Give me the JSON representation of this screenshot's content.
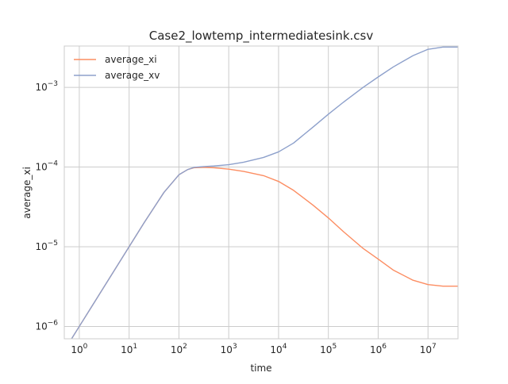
{
  "chart_data": {
    "type": "line",
    "title": "Case2_lowtemp_intermediatesink.csv",
    "xlabel": "time",
    "ylabel": "average_xi",
    "xscale": "log",
    "yscale": "log",
    "xlim": [
      0.5,
      40000000.0
    ],
    "ylim": [
      7e-07,
      0.0033
    ],
    "grid": true,
    "legend_position": "upper-left",
    "x_ticks": [
      {
        "value": 1,
        "base": "10",
        "exp": "0"
      },
      {
        "value": 10,
        "base": "10",
        "exp": "1"
      },
      {
        "value": 100,
        "base": "10",
        "exp": "2"
      },
      {
        "value": 1000,
        "base": "10",
        "exp": "3"
      },
      {
        "value": 10000,
        "base": "10",
        "exp": "4"
      },
      {
        "value": 100000,
        "base": "10",
        "exp": "5"
      },
      {
        "value": 1000000,
        "base": "10",
        "exp": "6"
      },
      {
        "value": 10000000,
        "base": "10",
        "exp": "7"
      }
    ],
    "y_ticks": [
      {
        "value": 1e-06,
        "base": "10",
        "exp": "−6"
      },
      {
        "value": 1e-05,
        "base": "10",
        "exp": "−5"
      },
      {
        "value": 0.0001,
        "base": "10",
        "exp": "−4"
      },
      {
        "value": 0.001,
        "base": "10",
        "exp": "−3"
      }
    ],
    "series": [
      {
        "name": "average_xi",
        "color": "#fc8d62",
        "x": [
          0.7,
          1,
          2,
          5,
          10,
          20,
          50,
          100,
          150,
          200,
          300,
          500,
          1000,
          2000,
          5000,
          10000,
          20000,
          50000,
          100000,
          200000,
          500000,
          1000000,
          2000000,
          5000000,
          10000000,
          20000000,
          40000000
        ],
        "y": [
          7e-07,
          1e-06,
          2e-06,
          5e-06,
          1e-05,
          2e-05,
          4.8e-05,
          8e-05,
          9.3e-05,
          9.8e-05,
          9.9e-05,
          9.8e-05,
          9.4e-05,
          8.8e-05,
          7.8e-05,
          6.6e-05,
          5.1e-05,
          3.3e-05,
          2.3e-05,
          1.55e-05,
          9.5e-06,
          7e-06,
          5.1e-06,
          3.8e-06,
          3.35e-06,
          3.2e-06,
          3.2e-06
        ]
      },
      {
        "name": "average_xv",
        "color": "#8da0cb",
        "x": [
          0.7,
          1,
          2,
          5,
          10,
          20,
          50,
          100,
          150,
          200,
          300,
          500,
          1000,
          2000,
          5000,
          10000,
          20000,
          50000,
          100000,
          200000,
          500000,
          1000000,
          2000000,
          5000000,
          10000000,
          20000000,
          40000000
        ],
        "y": [
          7e-07,
          1e-06,
          2e-06,
          5e-06,
          1e-05,
          2e-05,
          4.8e-05,
          8e-05,
          9.3e-05,
          9.9e-05,
          0.000101,
          0.000103,
          0.000107,
          0.000115,
          0.000132,
          0.000155,
          0.0002,
          0.00032,
          0.00046,
          0.00065,
          0.001,
          0.00135,
          0.0018,
          0.0025,
          0.003,
          0.0032,
          0.0032
        ]
      }
    ]
  }
}
